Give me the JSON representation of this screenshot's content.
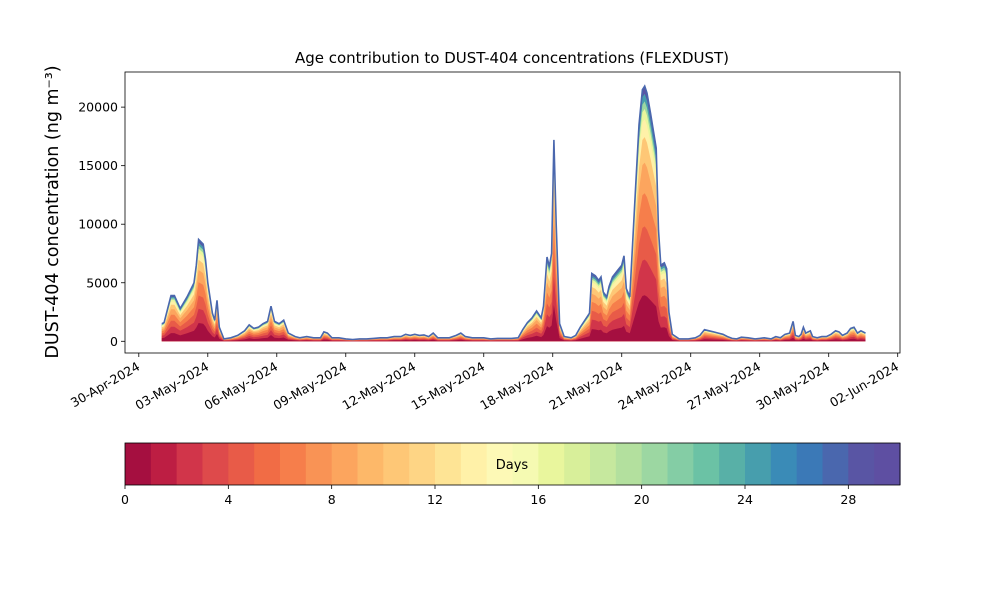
{
  "chart_data": {
    "type": "area",
    "title": "Age contribution to DUST-404 concentrations (FLEXDUST)",
    "ylabel": "DUST-404 concentration (ng m⁻³)",
    "xlabel": "",
    "x_start": "2024-04-30",
    "xlim_days": [
      -0.6,
      33.1
    ],
    "ylim": [
      -1000,
      23000
    ],
    "yticks": [
      0,
      5000,
      10000,
      15000,
      20000
    ],
    "xticks": [
      "30-Apr-2024",
      "03-May-2024",
      "06-May-2024",
      "09-May-2024",
      "12-May-2024",
      "15-May-2024",
      "18-May-2024",
      "21-May-2024",
      "24-May-2024",
      "27-May-2024",
      "30-May-2024",
      "02-Jun-2024"
    ],
    "xtick_offsets": [
      0,
      3,
      6,
      9,
      12,
      15,
      18,
      21,
      24,
      27,
      30,
      33
    ],
    "total": [
      [
        1.0,
        1500
      ],
      [
        1.1,
        1600
      ],
      [
        1.4,
        3900
      ],
      [
        1.55,
        3900
      ],
      [
        1.8,
        2800
      ],
      [
        2.1,
        3800
      ],
      [
        2.4,
        5000
      ],
      [
        2.5,
        6500
      ],
      [
        2.6,
        8700
      ],
      [
        2.8,
        8300
      ],
      [
        2.9,
        7000
      ],
      [
        3.0,
        5000
      ],
      [
        3.2,
        2400
      ],
      [
        3.3,
        1800
      ],
      [
        3.4,
        3500
      ],
      [
        3.5,
        1200
      ],
      [
        3.7,
        200
      ],
      [
        4.0,
        300
      ],
      [
        4.3,
        500
      ],
      [
        4.6,
        900
      ],
      [
        4.8,
        1400
      ],
      [
        5.0,
        1100
      ],
      [
        5.2,
        1200
      ],
      [
        5.4,
        1500
      ],
      [
        5.6,
        1700
      ],
      [
        5.75,
        3000
      ],
      [
        5.9,
        1700
      ],
      [
        6.1,
        1500
      ],
      [
        6.3,
        1800
      ],
      [
        6.5,
        700
      ],
      [
        6.8,
        400
      ],
      [
        7.0,
        300
      ],
      [
        7.3,
        400
      ],
      [
        7.6,
        300
      ],
      [
        7.9,
        300
      ],
      [
        8.05,
        800
      ],
      [
        8.2,
        700
      ],
      [
        8.4,
        300
      ],
      [
        8.7,
        300
      ],
      [
        9.0,
        200
      ],
      [
        9.3,
        150
      ],
      [
        9.6,
        200
      ],
      [
        9.9,
        200
      ],
      [
        10.2,
        250
      ],
      [
        10.5,
        300
      ],
      [
        10.8,
        300
      ],
      [
        11.1,
        400
      ],
      [
        11.4,
        400
      ],
      [
        11.6,
        600
      ],
      [
        11.8,
        500
      ],
      [
        12.0,
        600
      ],
      [
        12.2,
        500
      ],
      [
        12.4,
        550
      ],
      [
        12.6,
        400
      ],
      [
        12.8,
        700
      ],
      [
        13.0,
        300
      ],
      [
        13.2,
        300
      ],
      [
        13.5,
        300
      ],
      [
        13.8,
        500
      ],
      [
        14.0,
        700
      ],
      [
        14.2,
        400
      ],
      [
        14.5,
        300
      ],
      [
        14.8,
        300
      ],
      [
        15.0,
        300
      ],
      [
        15.3,
        200
      ],
      [
        15.6,
        250
      ],
      [
        15.9,
        250
      ],
      [
        16.2,
        250
      ],
      [
        16.5,
        300
      ],
      [
        16.7,
        1000
      ],
      [
        16.9,
        1600
      ],
      [
        17.1,
        2000
      ],
      [
        17.3,
        2600
      ],
      [
        17.5,
        2000
      ],
      [
        17.6,
        3000
      ],
      [
        17.75,
        7200
      ],
      [
        17.85,
        6400
      ],
      [
        17.95,
        7500
      ],
      [
        18.05,
        17200
      ],
      [
        18.15,
        10000
      ],
      [
        18.3,
        1500
      ],
      [
        18.5,
        400
      ],
      [
        18.8,
        300
      ],
      [
        19.0,
        500
      ],
      [
        19.2,
        1200
      ],
      [
        19.4,
        1800
      ],
      [
        19.6,
        2400
      ],
      [
        19.7,
        5800
      ],
      [
        19.85,
        5600
      ],
      [
        20.0,
        5200
      ],
      [
        20.1,
        5500
      ],
      [
        20.2,
        4200
      ],
      [
        20.35,
        3800
      ],
      [
        20.45,
        4700
      ],
      [
        20.6,
        5500
      ],
      [
        20.8,
        6000
      ],
      [
        21.0,
        6500
      ],
      [
        21.1,
        7300
      ],
      [
        21.2,
        4500
      ],
      [
        21.35,
        3800
      ],
      [
        21.6,
        13000
      ],
      [
        21.75,
        18500
      ],
      [
        21.9,
        21500
      ],
      [
        22.0,
        21800
      ],
      [
        22.1,
        21200
      ],
      [
        22.25,
        19500
      ],
      [
        22.5,
        16500
      ],
      [
        22.6,
        9500
      ],
      [
        22.7,
        6500
      ],
      [
        22.85,
        6700
      ],
      [
        22.95,
        6200
      ],
      [
        23.05,
        2500
      ],
      [
        23.2,
        600
      ],
      [
        23.5,
        200
      ],
      [
        23.9,
        200
      ],
      [
        24.2,
        300
      ],
      [
        24.4,
        500
      ],
      [
        24.6,
        1000
      ],
      [
        24.8,
        900
      ],
      [
        25.0,
        800
      ],
      [
        25.2,
        700
      ],
      [
        25.4,
        600
      ],
      [
        25.6,
        400
      ],
      [
        25.8,
        250
      ],
      [
        26.0,
        200
      ],
      [
        26.2,
        350
      ],
      [
        26.5,
        300
      ],
      [
        26.8,
        200
      ],
      [
        27.0,
        250
      ],
      [
        27.2,
        300
      ],
      [
        27.5,
        200
      ],
      [
        27.7,
        400
      ],
      [
        27.9,
        300
      ],
      [
        28.1,
        600
      ],
      [
        28.3,
        700
      ],
      [
        28.45,
        1700
      ],
      [
        28.55,
        500
      ],
      [
        28.7,
        400
      ],
      [
        28.8,
        600
      ],
      [
        28.9,
        1200
      ],
      [
        29.0,
        700
      ],
      [
        29.2,
        900
      ],
      [
        29.3,
        400
      ],
      [
        29.5,
        300
      ],
      [
        29.7,
        400
      ],
      [
        29.9,
        400
      ],
      [
        30.1,
        600
      ],
      [
        30.3,
        900
      ],
      [
        30.45,
        800
      ],
      [
        30.6,
        500
      ],
      [
        30.8,
        700
      ],
      [
        30.95,
        1100
      ],
      [
        31.1,
        1200
      ],
      [
        31.25,
        700
      ],
      [
        31.4,
        900
      ],
      [
        31.6,
        700
      ]
    ],
    "colorbar": {
      "label": "Days",
      "range": [
        0,
        30
      ],
      "ticks": [
        0,
        4,
        8,
        12,
        16,
        20,
        24,
        28
      ],
      "colors": [
        "#a50f40",
        "#bd1e43",
        "#d1354a",
        "#de4a4b",
        "#e85b48",
        "#f16c45",
        "#f67e4b",
        "#f99355",
        "#fca55e",
        "#fdb869",
        "#fec776",
        "#fed585",
        "#fee495",
        "#fff1a8",
        "#fdf9b6",
        "#f5fab2",
        "#e9f69d",
        "#d8ef9a",
        "#c6e89e",
        "#b3e09e",
        "#9cd7a2",
        "#84cda5",
        "#6bc2a5",
        "#58b0a7",
        "#479ead",
        "#3a8bb7",
        "#3b79b7",
        "#4a67ae",
        "#5955a4",
        "#5e4fa2"
      ]
    }
  }
}
